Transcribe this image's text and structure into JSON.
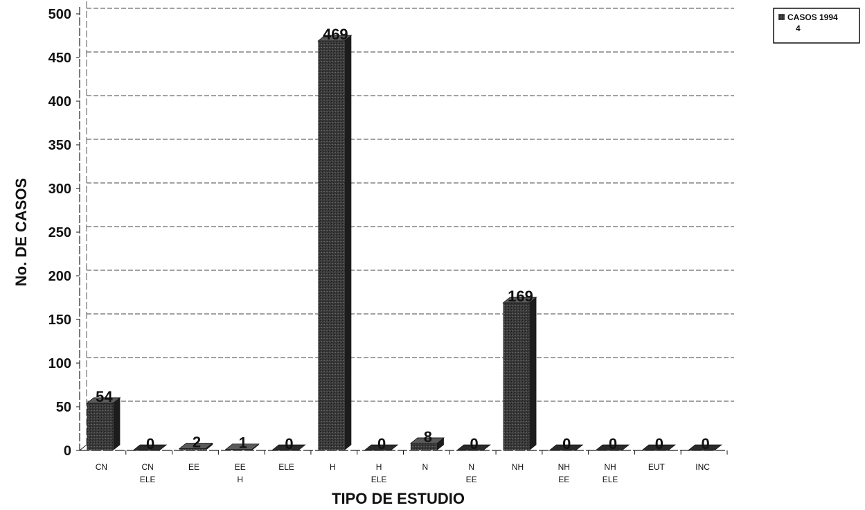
{
  "chart_data": {
    "type": "bar",
    "title": "",
    "xlabel": "TIPO DE ESTUDIO",
    "ylabel": "No. DE CASOS",
    "ylim": [
      0,
      500
    ],
    "yticks": [
      0,
      50,
      100,
      150,
      200,
      250,
      300,
      350,
      400,
      450,
      500
    ],
    "categories": [
      [
        "CN"
      ],
      [
        "CN",
        "ELE"
      ],
      [
        "EE"
      ],
      [
        "EE",
        "H"
      ],
      [
        "ELE"
      ],
      [
        "H"
      ],
      [
        "H",
        "ELE"
      ],
      [
        "N"
      ],
      [
        "N",
        "EE"
      ],
      [
        "NH"
      ],
      [
        "NH",
        "EE"
      ],
      [
        "NH",
        "ELE"
      ],
      [
        "EUT"
      ],
      [
        "INC"
      ]
    ],
    "series": [
      {
        "name": "CASOS 1994",
        "values": [
          54,
          0,
          2,
          1,
          0,
          469,
          0,
          8,
          0,
          169,
          0,
          0,
          0,
          0
        ]
      }
    ],
    "legend": {
      "position": "top-right",
      "label_line1": "CASOS 1994",
      "label_line2": "4"
    },
    "grid": true,
    "colors": {
      "bar_front": "#3a3a3a",
      "bar_side": "#1c1c1c",
      "bar_top": "#5a5a5a",
      "grid": "#444444"
    }
  }
}
